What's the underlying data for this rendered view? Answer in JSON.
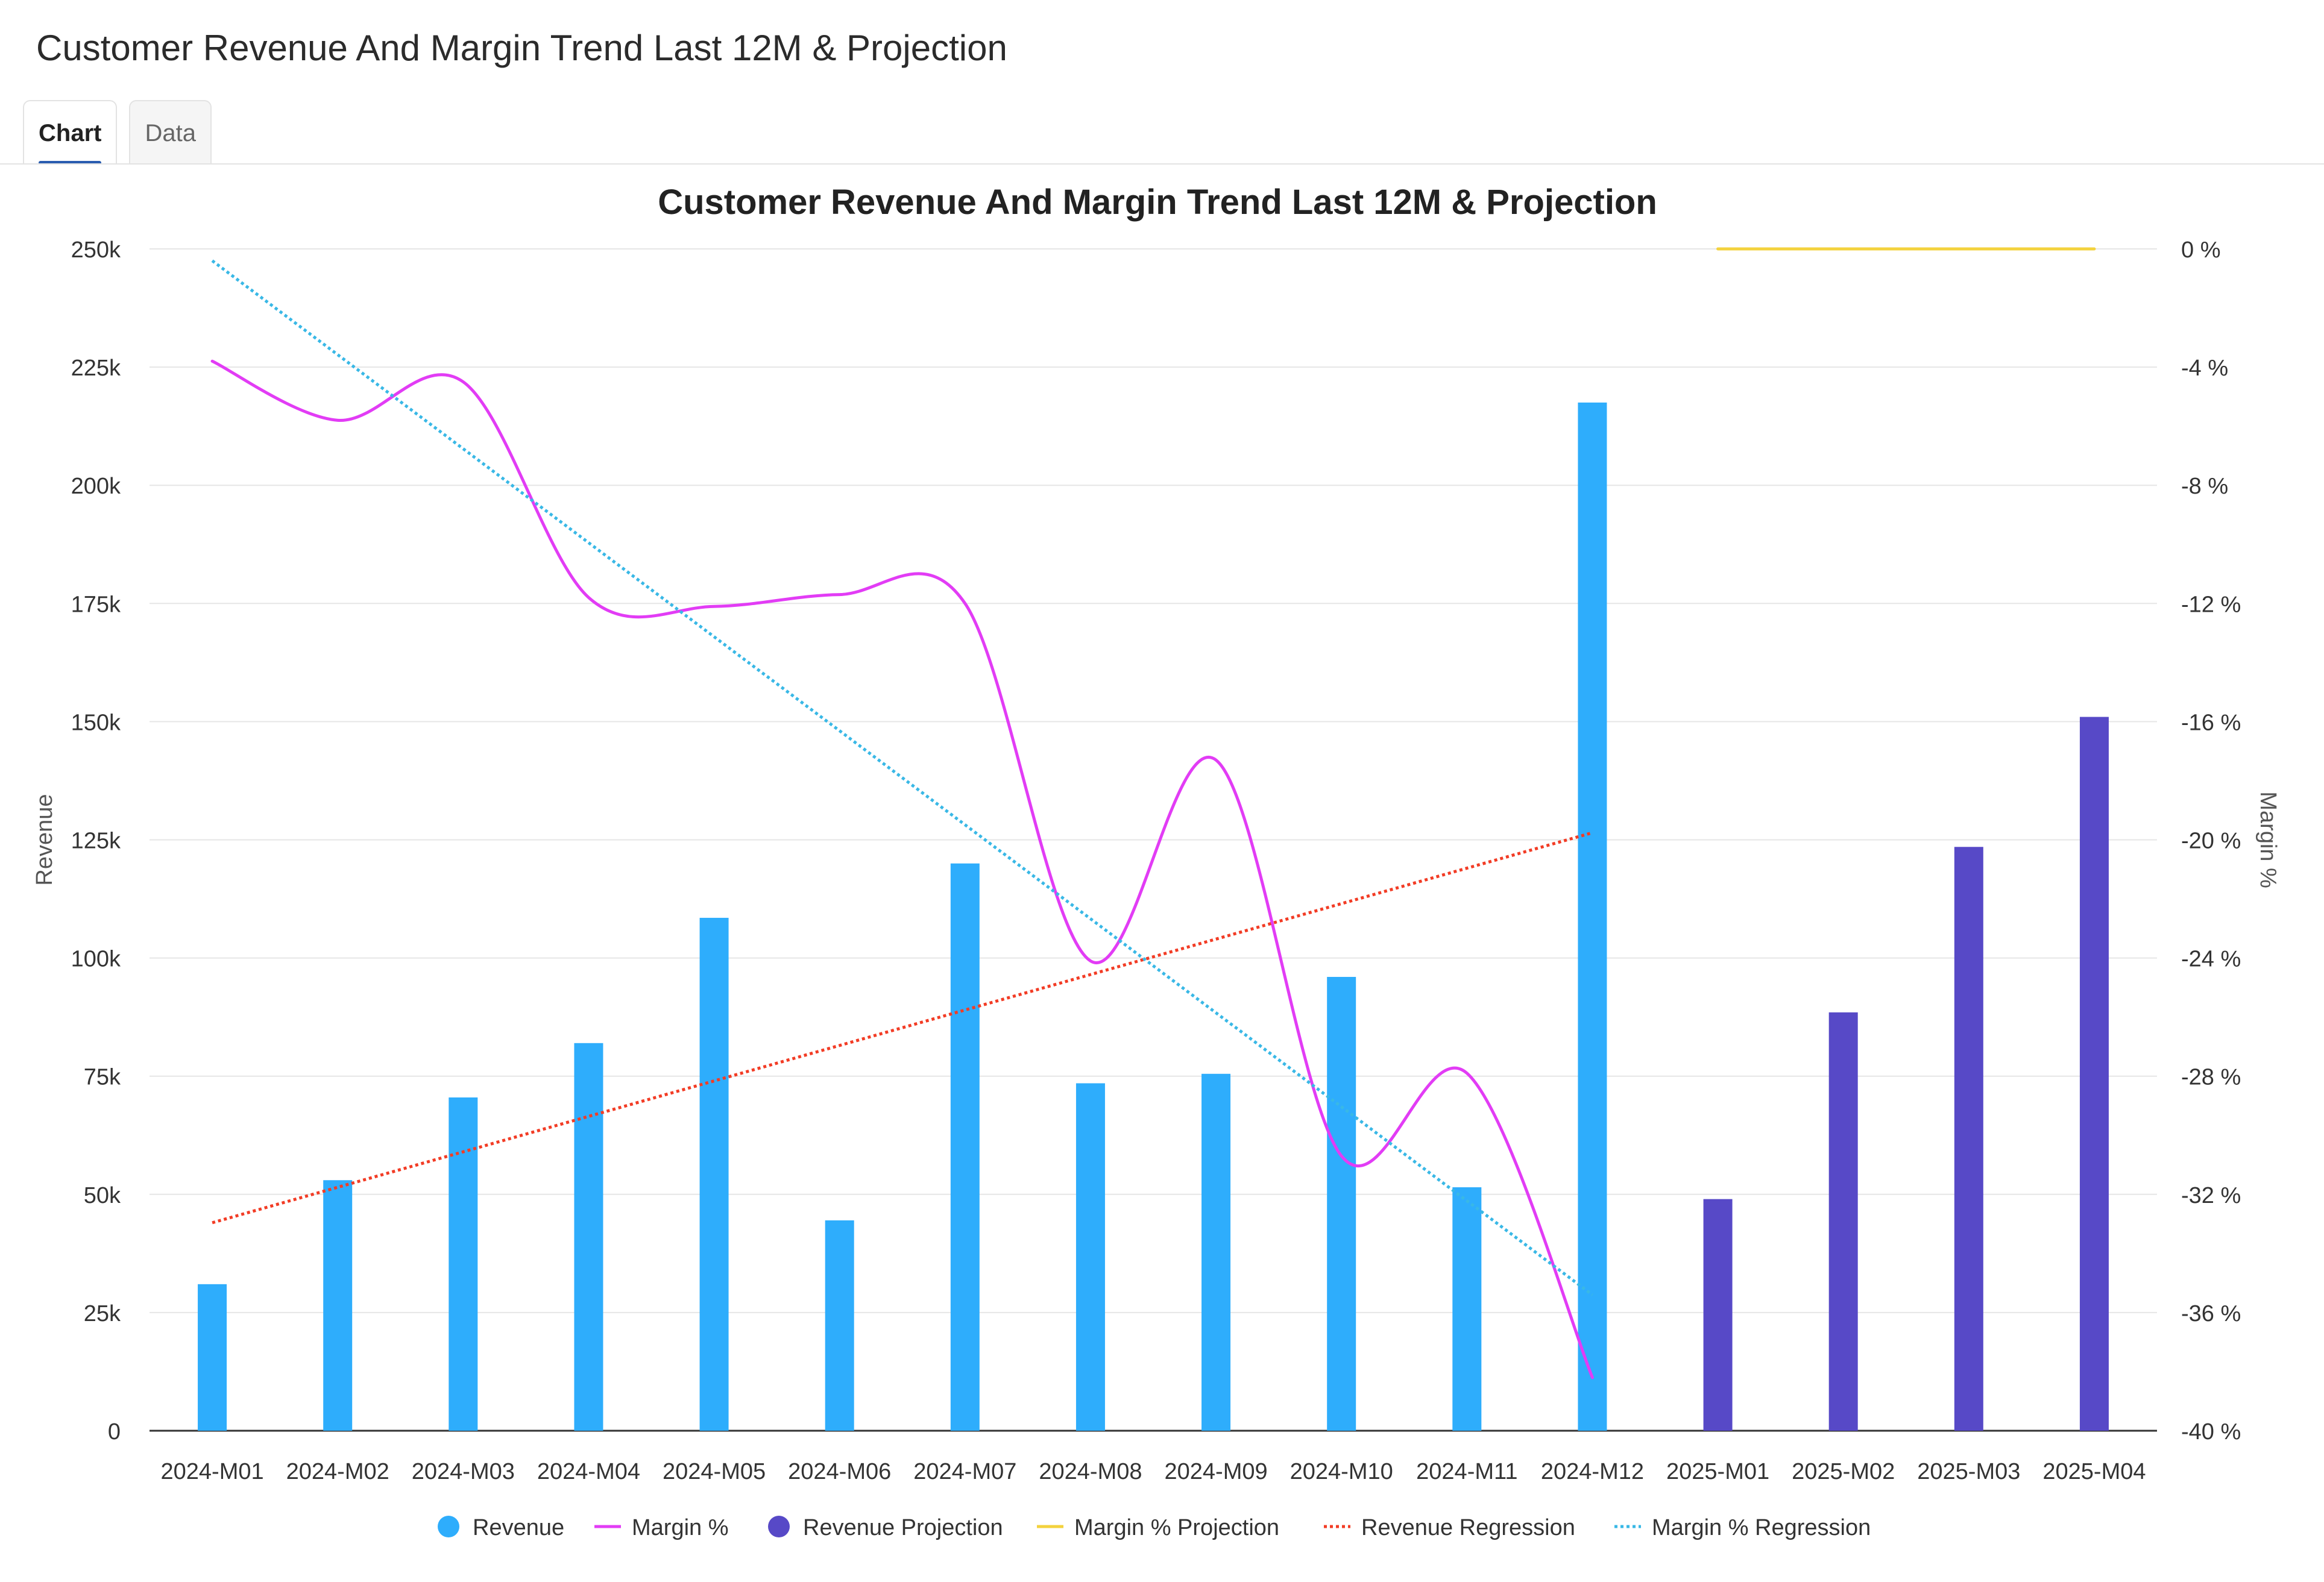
{
  "page": {
    "title": "Customer Revenue And Margin Trend Last 12M & Projection"
  },
  "tabs": [
    {
      "label": "Chart",
      "active": true
    },
    {
      "label": "Data",
      "active": false
    }
  ],
  "colors": {
    "revenue": "#2eadfc",
    "margin": "#e23cf5",
    "revenue_projection": "#5749c7",
    "margin_projection": "#f3d23d",
    "revenue_regression": "#f23c25",
    "margin_regression": "#39b8e6",
    "grid": "#e6e6e6",
    "axis_text": "#333333"
  },
  "chart_data": {
    "type": "bar",
    "title": "Customer Revenue And Margin Trend Last 12M & Projection",
    "categories": [
      "2024-M01",
      "2024-M02",
      "2024-M03",
      "2024-M04",
      "2024-M05",
      "2024-M06",
      "2024-M07",
      "2024-M08",
      "2024-M09",
      "2024-M10",
      "2024-M11",
      "2024-M12",
      "2025-M01",
      "2025-M02",
      "2025-M03",
      "2025-M04"
    ],
    "ylabel": "Revenue",
    "y2label": "Margin %",
    "ylim": [
      0,
      250000
    ],
    "y2lim": [
      -40,
      0
    ],
    "yticks": [
      {
        "value": 0,
        "label": "0"
      },
      {
        "value": 25000,
        "label": "25k"
      },
      {
        "value": 50000,
        "label": "50k"
      },
      {
        "value": 75000,
        "label": "75k"
      },
      {
        "value": 100000,
        "label": "100k"
      },
      {
        "value": 125000,
        "label": "125k"
      },
      {
        "value": 150000,
        "label": "150k"
      },
      {
        "value": 175000,
        "label": "175k"
      },
      {
        "value": 200000,
        "label": "200k"
      },
      {
        "value": 225000,
        "label": "225k"
      },
      {
        "value": 250000,
        "label": "250k"
      }
    ],
    "y2ticks": [
      {
        "value": 0,
        "label": "0 %"
      },
      {
        "value": -4,
        "label": "-4 %"
      },
      {
        "value": -8,
        "label": "-8 %"
      },
      {
        "value": -12,
        "label": "-12 %"
      },
      {
        "value": -16,
        "label": "-16 %"
      },
      {
        "value": -20,
        "label": "-20 %"
      },
      {
        "value": -24,
        "label": "-24 %"
      },
      {
        "value": -28,
        "label": "-28 %"
      },
      {
        "value": -32,
        "label": "-32 %"
      },
      {
        "value": -36,
        "label": "-36 %"
      },
      {
        "value": -40,
        "label": "-40 %"
      }
    ],
    "grid": true,
    "legend_position": "bottom",
    "series": [
      {
        "name": "Revenue",
        "kind": "bar",
        "axis": "left",
        "color_key": "revenue",
        "legend_marker": "dot",
        "values": [
          31000,
          53000,
          70500,
          82000,
          108500,
          44500,
          120000,
          73500,
          75500,
          96000,
          51500,
          217500,
          null,
          null,
          null,
          null
        ]
      },
      {
        "name": "Margin %",
        "kind": "line",
        "axis": "right",
        "color_key": "margin",
        "legend_marker": "line",
        "values": [
          -3.8,
          -5.8,
          -4.5,
          -11.8,
          -12.1,
          -11.7,
          -12.0,
          -24.1,
          -17.3,
          -30.7,
          -27.9,
          -38.2,
          null,
          null,
          null,
          null
        ]
      },
      {
        "name": "Revenue Projection",
        "kind": "bar",
        "axis": "left",
        "color_key": "revenue_projection",
        "legend_marker": "dot",
        "values": [
          null,
          null,
          null,
          null,
          null,
          null,
          null,
          null,
          null,
          null,
          null,
          null,
          49000,
          88500,
          123500,
          151000
        ]
      },
      {
        "name": "Margin % Projection",
        "kind": "line",
        "axis": "right",
        "color_key": "margin_projection",
        "legend_marker": "line",
        "values": [
          null,
          null,
          null,
          null,
          null,
          null,
          null,
          null,
          null,
          null,
          null,
          null,
          0,
          0,
          0,
          0
        ]
      },
      {
        "name": "Revenue Regression",
        "kind": "dotted",
        "axis": "left",
        "color_key": "revenue_regression",
        "legend_marker": "dotted",
        "values": [
          44000,
          51500,
          59000,
          66500,
          74000,
          81500,
          89000,
          96500,
          104000,
          111500,
          119000,
          126500,
          null,
          null,
          null,
          null
        ]
      },
      {
        "name": "Margin % Regression",
        "kind": "dotted",
        "axis": "right",
        "color_key": "margin_regression",
        "legend_marker": "dotted",
        "values": [
          -0.4,
          -3.6,
          -6.8,
          -9.9,
          -13.1,
          -16.3,
          -19.5,
          -22.7,
          -25.8,
          -29.0,
          -32.2,
          -35.4,
          null,
          null,
          null,
          null
        ]
      }
    ]
  }
}
